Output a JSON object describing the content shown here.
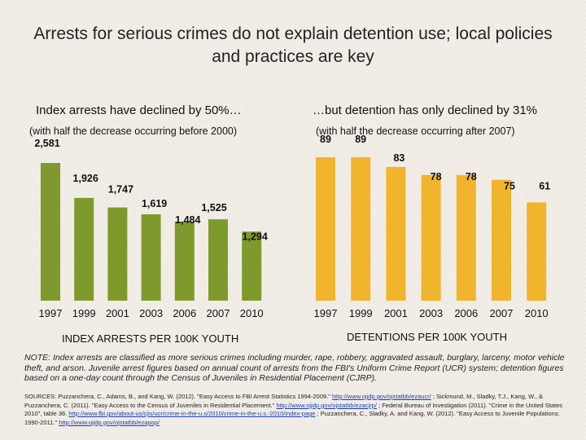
{
  "title": "Arrests for serious crimes do not explain detention use; local policies and practices are key",
  "colors": {
    "arrests": "#7f9a2c",
    "detentions": "#f0b52c",
    "background": "#f3efe8",
    "link": "#1a3fb5"
  },
  "left_panel": {
    "heading": "Index arrests have declined by 50%…",
    "subheading": "(with half the decrease occurring before 2000)",
    "axis_caption": "INDEX ARRESTS PER 100K YOUTH"
  },
  "right_panel": {
    "heading": "…but detention has only declined by 31%",
    "subheading": "(with half the decrease occurring after 2007)",
    "axis_caption": "DETENTIONS PER 100K YOUTH"
  },
  "chart_data": [
    {
      "type": "bar",
      "title": "Index arrests have declined by 50%…",
      "xlabel": "INDEX ARRESTS PER 100K YOUTH",
      "ylabel": "",
      "categories": [
        "1997",
        "1999",
        "2001",
        "2003",
        "2006",
        "2007",
        "2010"
      ],
      "values": [
        2581,
        1926,
        1747,
        1619,
        1484,
        1525,
        1294
      ],
      "labels": [
        "2,581",
        "1,926",
        "1,747",
        "1,619",
        "1,484",
        "1,525",
        "1,294"
      ],
      "ylim": [
        0,
        2700
      ],
      "grid": false
    },
    {
      "type": "bar",
      "title": "…but detention has only declined by 31%",
      "xlabel": "DETENTIONS PER 100K YOUTH",
      "ylabel": "",
      "categories": [
        "1997",
        "1999",
        "2001",
        "2003",
        "2006",
        "2007",
        "2010"
      ],
      "values": [
        89,
        89,
        83,
        78,
        78,
        75,
        61
      ],
      "labels": [
        "89",
        "89",
        "83",
        "78",
        "78",
        "75",
        "61"
      ],
      "ylim": [
        0,
        93
      ],
      "grid": false
    }
  ],
  "note": "NOTE: Index arrests are classified as more serious crimes including murder, rape, robbery, aggravated assault, burglary, larceny, motor vehicle theft, and arson. Juvenile arrest figures based on annual count of arrests from the FBI's Uniform Crime Report (UCR) system; detention figures based on a one-day count through the Census of Juveniles in Residential Placement (CJRP).",
  "sources": {
    "s1": "SOURCES: Puzzanchera, C., Adams, B., and Kang, W. (2012). \"Easy Access to FBI Arrest Statistics 1994-2009.\"",
    "l1": "http://www.ojjdp.gov/ojstatbb/ezaucr/",
    "s2": "; Sickmund, M., Sladky, T.J., Kang, W., & Puzzanchera, C. (2011). \"Easy Access to the Census of Juveniles in Residential Placement.\"",
    "l2": "http://www.ojjdp.gov/ojstatbb/ezacjrp/",
    "s3": "; Federal Bureau of Investigation (2011). \"Crime in the United States 2010\", table 36.",
    "l3": "http://www.fbi.gov/about-us/cjis/ucr/crime-in-the-u.s/2010/crime-in-the-u.s.-2010/index-page",
    "s4": "; Puzzanchera, C., Sladky, A. and Kang, W. (2012). \"Easy Access to Juvenile Populations: 1990-2011.\"",
    "l4": "http://www.ojjdp.gov/ojstatbb/ezapop/"
  }
}
